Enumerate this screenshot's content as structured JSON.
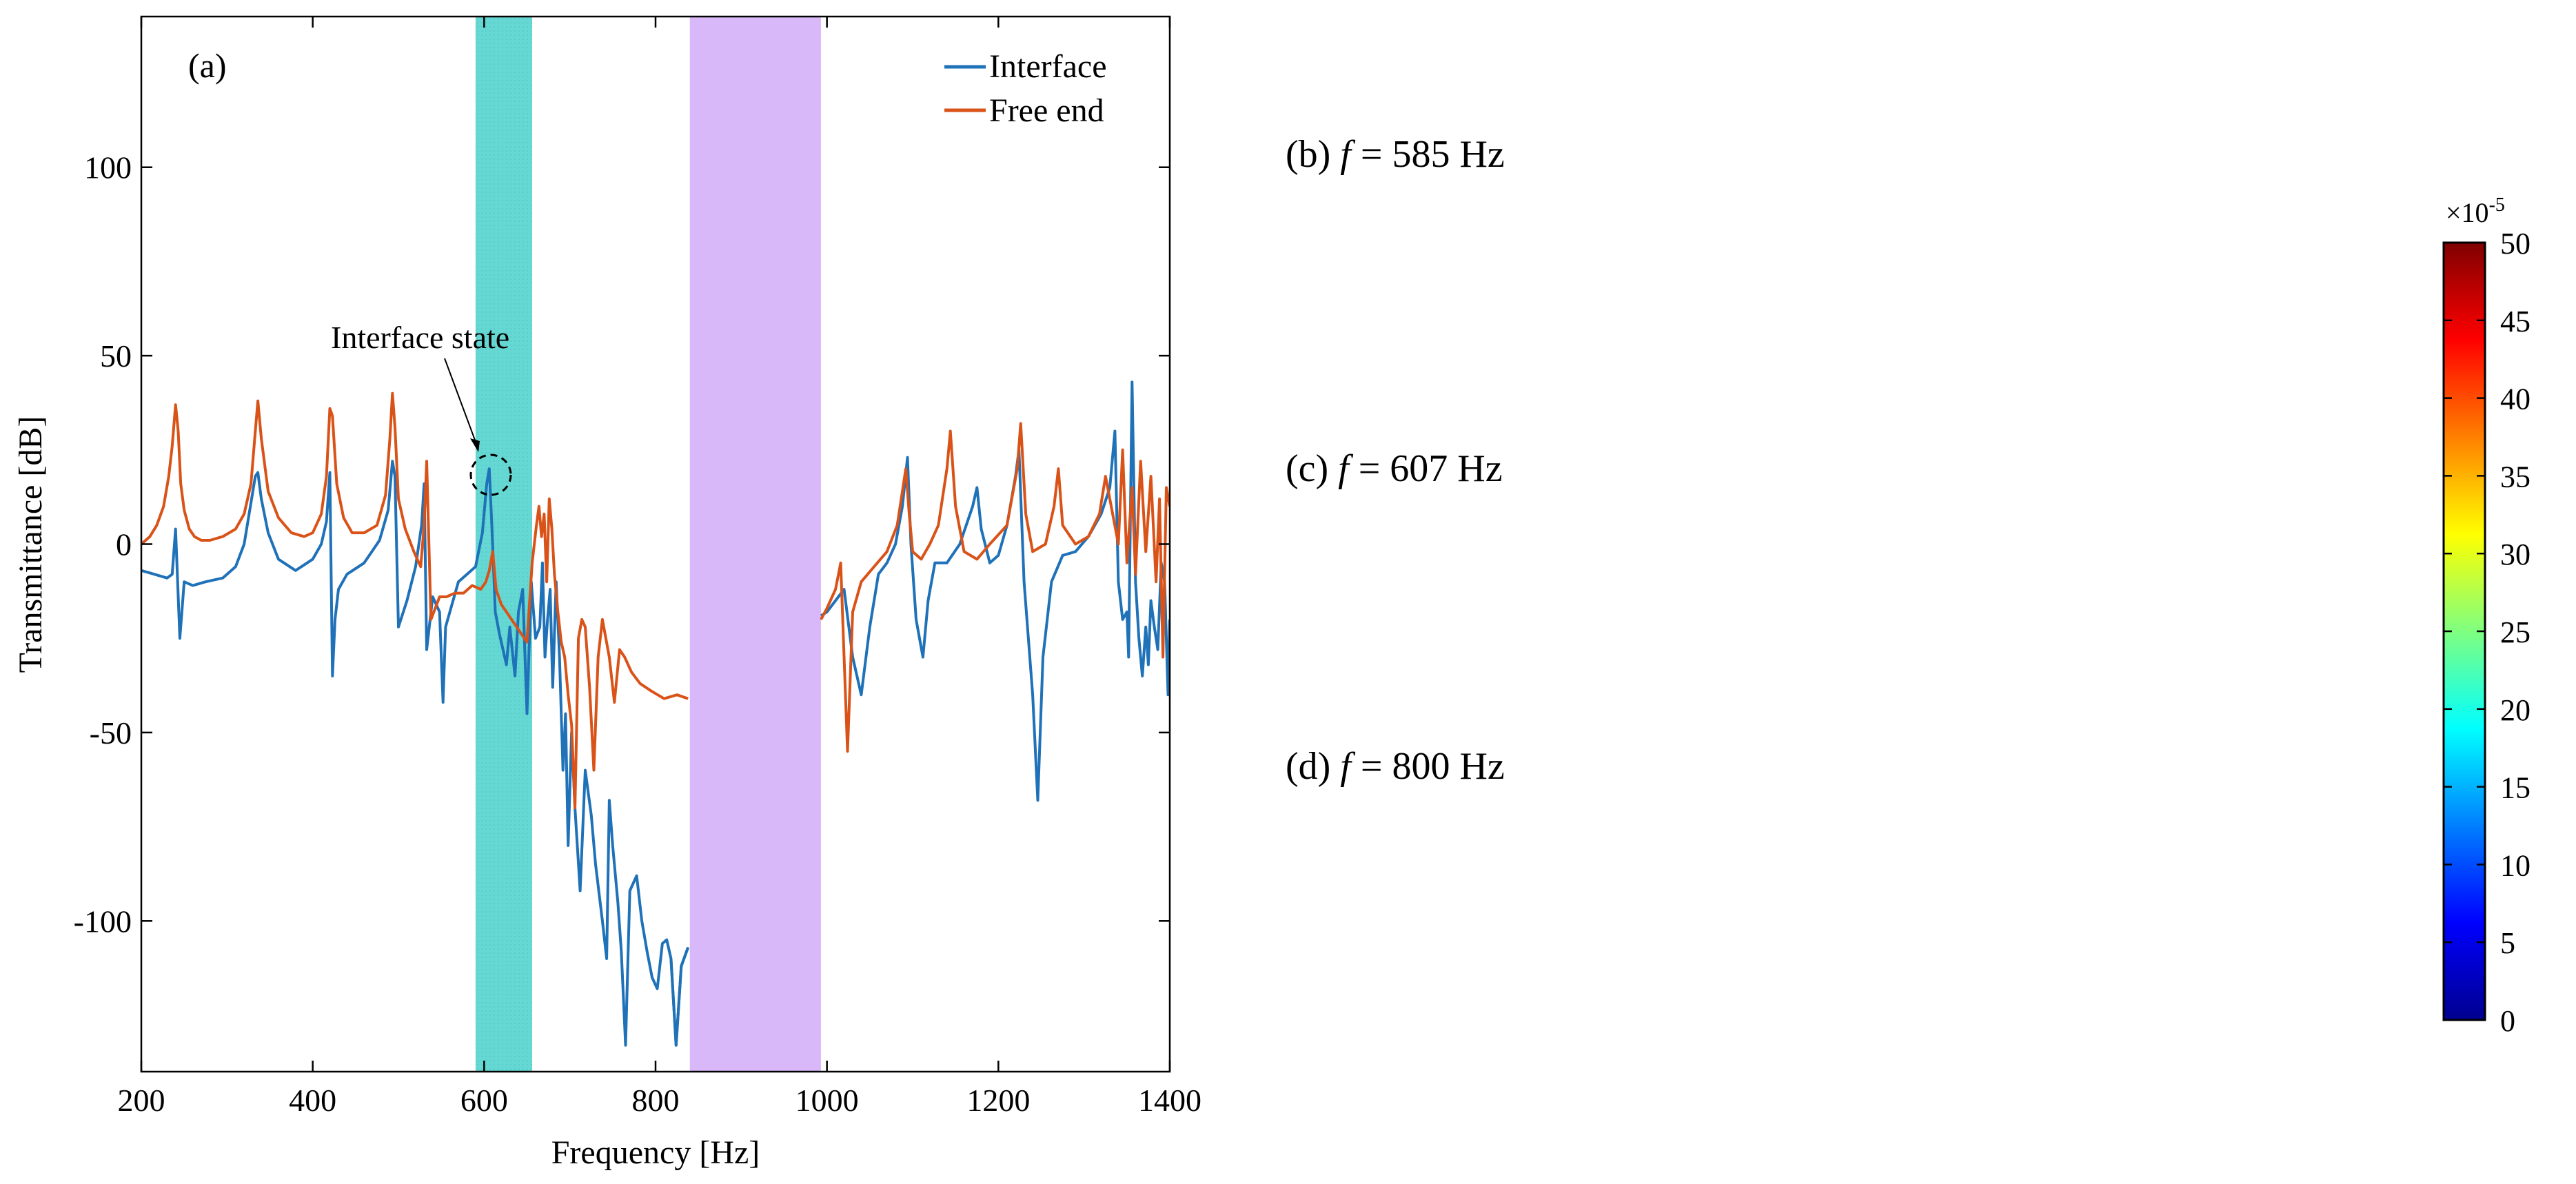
{
  "chart_data": [
    {
      "type": "line",
      "panel_label": "(a)",
      "xlabel": "Frequency [Hz]",
      "ylabel": "Transmittance [dB]",
      "xlim": [
        200,
        1400
      ],
      "ylim": [
        -140,
        140
      ],
      "xticks": [
        200,
        400,
        600,
        800,
        1000,
        1200,
        1400
      ],
      "yticks": [
        -100,
        -50,
        0,
        50,
        100
      ],
      "grid": false,
      "legend_position": "top-right",
      "bands": [
        {
          "name": "interface-band",
          "from": 590,
          "to": 656,
          "color": "#5ed6d2"
        },
        {
          "name": "band-gap",
          "from": 840,
          "to": 993,
          "color": "#d7b4f9"
        }
      ],
      "annotation": {
        "text": "Interface state",
        "x": 605,
        "y": 19
      },
      "series": [
        {
          "name": "Interface",
          "color": "#1f71b8",
          "x": [
            200,
            215,
            230,
            236,
            240,
            245,
            250,
            260,
            275,
            295,
            310,
            320,
            328,
            333,
            336,
            340,
            348,
            360,
            380,
            400,
            410,
            416,
            420,
            423,
            426,
            430,
            440,
            460,
            478,
            488,
            493,
            496,
            500,
            510,
            520,
            527,
            530,
            533,
            540,
            548,
            552,
            555,
            560,
            570,
            580,
            590,
            598,
            603,
            606,
            609,
            613,
            618,
            622,
            626,
            630,
            636,
            640,
            645,
            650,
            655,
            660,
            665,
            668,
            671,
            674,
            677,
            680,
            684,
            688,
            692,
            695,
            698,
            702,
            706,
            712,
            718,
            725,
            730,
            738,
            743,
            746,
            750,
            756,
            760,
            765,
            770,
            778,
            784,
            790,
            796,
            802,
            808,
            813,
            818,
            824,
            830,
            838
          ],
          "y": [
            -7,
            -8,
            -9,
            -8,
            4,
            -25,
            -10,
            -11,
            -10,
            -9,
            -6,
            0,
            11,
            18,
            19,
            12,
            3,
            -4,
            -7,
            -4,
            0,
            6,
            19,
            -35,
            -20,
            -12,
            -8,
            -5,
            1,
            9,
            22,
            18,
            -22,
            -15,
            -6,
            5,
            16,
            -28,
            -14,
            -18,
            -42,
            -22,
            -18,
            -10,
            -8,
            -6,
            3,
            16,
            20,
            5,
            -18,
            -24,
            -28,
            -32,
            -22,
            -35,
            -18,
            -12,
            -45,
            -10,
            -25,
            -22,
            -5,
            -30,
            -20,
            -12,
            -38,
            -10,
            -30,
            -60,
            -45,
            -80,
            -50,
            -70,
            -92,
            -60,
            -72,
            -85,
            -100,
            -110,
            -68,
            -80,
            -95,
            -108,
            -133,
            -92,
            -88,
            -100,
            -108,
            -115,
            -118,
            -106,
            -105,
            -110,
            -133,
            -112,
            -107
          ]
        },
        {
          "name": "Free end",
          "color": "#d95319",
          "x": [
            200,
            210,
            218,
            226,
            232,
            236,
            240,
            243,
            246,
            250,
            256,
            262,
            270,
            280,
            295,
            310,
            320,
            328,
            333,
            336,
            340,
            348,
            360,
            375,
            390,
            400,
            410,
            416,
            420,
            423,
            428,
            436,
            446,
            460,
            475,
            485,
            490,
            493,
            496,
            500,
            508,
            518,
            526,
            530,
            533,
            538,
            548,
            556,
            566,
            576,
            586,
            596,
            602,
            606,
            610,
            614,
            620,
            626,
            632,
            638,
            644,
            650,
            656,
            661,
            664,
            667,
            670,
            673,
            676,
            679,
            682,
            686,
            690,
            694,
            698,
            702,
            706,
            710,
            714,
            718,
            723,
            728,
            733,
            738,
            742,
            746,
            752,
            758,
            764,
            772,
            782,
            795,
            810,
            825,
            838
          ],
          "y": [
            0,
            2,
            5,
            10,
            18,
            26,
            37,
            30,
            16,
            9,
            4,
            2,
            1,
            1,
            2,
            4,
            8,
            16,
            30,
            38,
            28,
            14,
            7,
            3,
            2,
            3,
            8,
            18,
            36,
            34,
            16,
            7,
            3,
            3,
            5,
            13,
            28,
            40,
            31,
            12,
            4,
            -2,
            -6,
            5,
            22,
            -20,
            -14,
            -14,
            -13,
            -13,
            -11,
            -12,
            -10,
            -7,
            -2,
            -12,
            -16,
            -18,
            -20,
            -22,
            -24,
            -26,
            -5,
            5,
            10,
            2,
            8,
            -10,
            12,
            4,
            -8,
            -18,
            -26,
            -30,
            -40,
            -48,
            -70,
            -25,
            -20,
            -22,
            -38,
            -60,
            -30,
            -20,
            -25,
            -30,
            -42,
            -28,
            -30,
            -34,
            -37,
            -39,
            -41,
            -40,
            -41
          ]
        }
      ]
    },
    {
      "type": "heatmap",
      "panels": [
        {
          "label": "(b) ",
          "var": "f",
          "eq": " = 585 Hz"
        },
        {
          "label": "(c) ",
          "var": "f",
          "eq": " = 607 Hz"
        },
        {
          "label": "(d) ",
          "var": "f",
          "eq": " = 800 Hz"
        }
      ],
      "colorbar": {
        "scale": "×10",
        "exponent": "-5",
        "min": 0,
        "max": 50,
        "ticks": [
          "0",
          "5",
          "10",
          "15",
          "20",
          "25",
          "30",
          "35",
          "40",
          "45",
          "50"
        ]
      }
    }
  ]
}
